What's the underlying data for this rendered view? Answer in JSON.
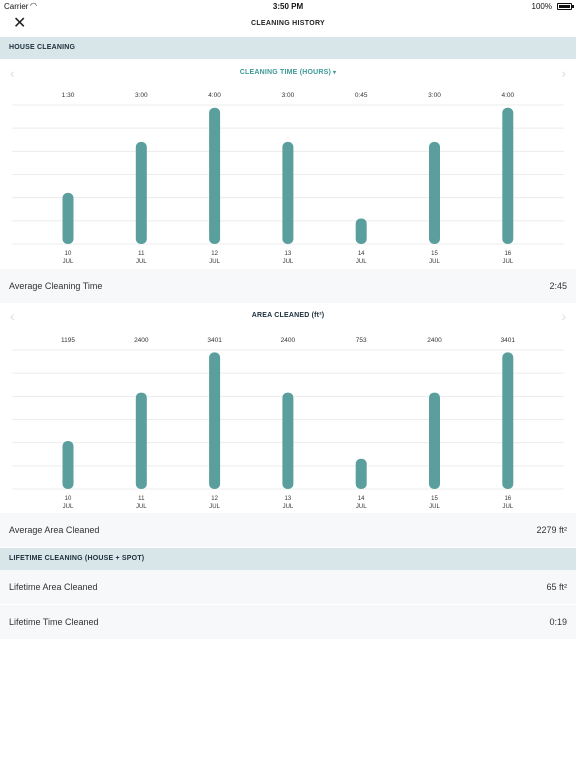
{
  "status_bar": {
    "carrier": "Carrier",
    "time": "3:50 PM",
    "battery": "100%"
  },
  "header": {
    "title": "CLEANING HISTORY"
  },
  "house_cleaning": {
    "header": "HOUSE CLEANING",
    "time_chart": {
      "title": "CLEANING TIME (HOURS)",
      "caret": "▾"
    },
    "avg_time": {
      "label": "Average Cleaning Time",
      "value": "2:45"
    },
    "area_chart": {
      "title": "AREA CLEANED (ft²)"
    },
    "avg_area": {
      "label": "Average Area Cleaned",
      "value": "2279 ft²"
    }
  },
  "lifetime": {
    "header": "LIFETIME CLEANING (HOUSE + SPOT)",
    "area": {
      "label": "Lifetime Area Cleaned",
      "value": "65 ft²"
    },
    "time": {
      "label": "Lifetime Time Cleaned",
      "value": "0:19"
    }
  },
  "colors": {
    "bar": "#5a9f9d",
    "accent": "#3d9a98",
    "grid": "#ececec",
    "section_bg": "#d9e6e9"
  },
  "chart_data": [
    {
      "type": "bar",
      "title": "CLEANING TIME (HOURS)",
      "categories": [
        {
          "day": "10",
          "month": "JUL"
        },
        {
          "day": "11",
          "month": "JUL"
        },
        {
          "day": "12",
          "month": "JUL"
        },
        {
          "day": "13",
          "month": "JUL"
        },
        {
          "day": "14",
          "month": "JUL"
        },
        {
          "day": "15",
          "month": "JUL"
        },
        {
          "day": "16",
          "month": "JUL"
        }
      ],
      "values": [
        1.5,
        3.0,
        4.0,
        3.0,
        0.75,
        3.0,
        4.0
      ],
      "value_labels": [
        "1:30",
        "3:00",
        "4:00",
        "3:00",
        "0:45",
        "3:00",
        "4:00"
      ],
      "ylim": [
        0,
        4.2
      ],
      "grid": true
    },
    {
      "type": "bar",
      "title": "AREA CLEANED (ft²)",
      "categories": [
        {
          "day": "10",
          "month": "JUL"
        },
        {
          "day": "11",
          "month": "JUL"
        },
        {
          "day": "12",
          "month": "JUL"
        },
        {
          "day": "13",
          "month": "JUL"
        },
        {
          "day": "14",
          "month": "JUL"
        },
        {
          "day": "15",
          "month": "JUL"
        },
        {
          "day": "16",
          "month": "JUL"
        }
      ],
      "values": [
        1195,
        2400,
        3401,
        2400,
        753,
        2400,
        3401
      ],
      "value_labels": [
        "1195",
        "2400",
        "3401",
        "2400",
        "753",
        "2400",
        "3401"
      ],
      "ylim": [
        0,
        3560
      ],
      "grid": true
    }
  ]
}
